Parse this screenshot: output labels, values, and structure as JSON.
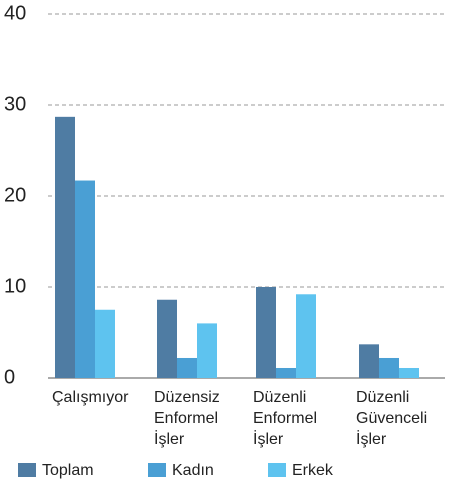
{
  "chart_data": {
    "type": "bar",
    "categories": [
      [
        "Çalışmıyor"
      ],
      [
        "Düzensiz",
        "Enformel",
        "İşler"
      ],
      [
        "Düzenli",
        "Enformel",
        "İşler"
      ],
      [
        "Düzenli",
        "Güvenceli",
        "İşler"
      ]
    ],
    "series": [
      {
        "name": "Toplam",
        "color": "#4f7ca3",
        "values": [
          28.7,
          8.6,
          10,
          3.7
        ]
      },
      {
        "name": "Kadın",
        "color": "#4a9fd4",
        "values": [
          21.7,
          2.2,
          1.1,
          2.2
        ]
      },
      {
        "name": "Erkek",
        "color": "#5ec3ef",
        "values": [
          7.5,
          6,
          9.2,
          1.1
        ]
      }
    ],
    "ylim": [
      0,
      40
    ],
    "yticks": [
      0,
      10,
      20,
      30,
      40
    ],
    "grid": true
  }
}
